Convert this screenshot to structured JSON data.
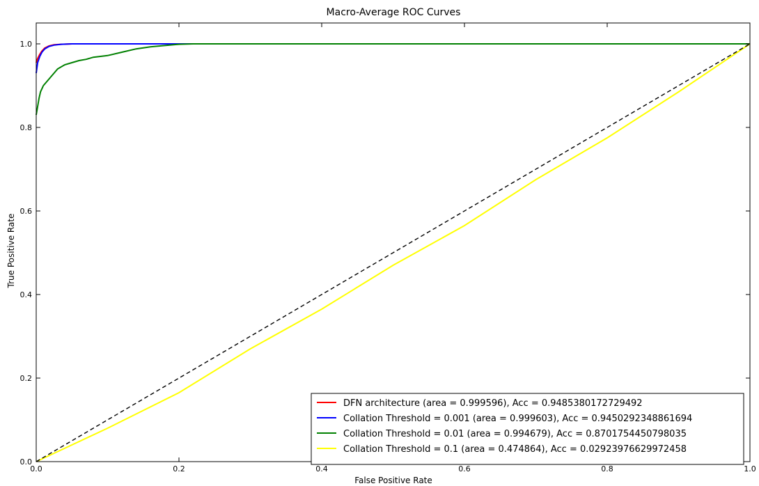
{
  "chart_data": {
    "type": "line",
    "title": "Macro-Average ROC Curves",
    "xlabel": "False Positive Rate",
    "ylabel": "True Positive Rate",
    "xlim": [
      0.0,
      1.0
    ],
    "ylim": [
      0.0,
      1.05
    ],
    "x_ticks": [
      "0.0",
      "0.2",
      "0.4",
      "0.6",
      "0.8",
      "1.0"
    ],
    "y_ticks": [
      "0.0",
      "0.2",
      "0.4",
      "0.6",
      "0.8",
      "1.0"
    ],
    "grid": false,
    "legend_position": "lower right",
    "series": [
      {
        "name": "DFN architecture (area =  0.999596), Acc = 0.9485380172729492",
        "color": "#ff0000",
        "points": [
          [
            0,
            0.955
          ],
          [
            0.002,
            0.965
          ],
          [
            0.005,
            0.975
          ],
          [
            0.008,
            0.983
          ],
          [
            0.012,
            0.99
          ],
          [
            0.018,
            0.995
          ],
          [
            0.025,
            0.998
          ],
          [
            0.035,
            0.999
          ],
          [
            0.05,
            1.0
          ],
          [
            0.2,
            1.0
          ],
          [
            1.0,
            1.0
          ]
        ]
      },
      {
        "name": "Collation Threshold = 0.001 (area =  0.999603), Acc = 0.9450292348861694",
        "color": "#0000ff",
        "points": [
          [
            0,
            0.93
          ],
          [
            0.002,
            0.955
          ],
          [
            0.005,
            0.97
          ],
          [
            0.008,
            0.98
          ],
          [
            0.012,
            0.988
          ],
          [
            0.018,
            0.994
          ],
          [
            0.025,
            0.997
          ],
          [
            0.035,
            0.999
          ],
          [
            0.05,
            1.0
          ],
          [
            0.2,
            1.0
          ],
          [
            1.0,
            1.0
          ]
        ]
      },
      {
        "name": "Collation Threshold = 0.01  (area =  0.994679), Acc = 0.8701754450798035",
        "color": "#008000",
        "points": [
          [
            0,
            0.83
          ],
          [
            0.002,
            0.85
          ],
          [
            0.004,
            0.87
          ],
          [
            0.006,
            0.885
          ],
          [
            0.01,
            0.9
          ],
          [
            0.015,
            0.91
          ],
          [
            0.02,
            0.92
          ],
          [
            0.025,
            0.93
          ],
          [
            0.03,
            0.94
          ],
          [
            0.04,
            0.95
          ],
          [
            0.05,
            0.955
          ],
          [
            0.06,
            0.96
          ],
          [
            0.07,
            0.963
          ],
          [
            0.08,
            0.968
          ],
          [
            0.1,
            0.972
          ],
          [
            0.12,
            0.98
          ],
          [
            0.14,
            0.988
          ],
          [
            0.16,
            0.993
          ],
          [
            0.18,
            0.996
          ],
          [
            0.2,
            0.999
          ],
          [
            0.22,
            1.0
          ],
          [
            1.0,
            1.0
          ]
        ]
      },
      {
        "name": "Collation Threshold = 0.1  (area =  0.474864), Acc = 0.02923976629972458",
        "color": "#ffff00",
        "points": [
          [
            0,
            0.0
          ],
          [
            0.1,
            0.08
          ],
          [
            0.2,
            0.165
          ],
          [
            0.3,
            0.27
          ],
          [
            0.4,
            0.365
          ],
          [
            0.5,
            0.47
          ],
          [
            0.6,
            0.565
          ],
          [
            0.7,
            0.675
          ],
          [
            0.8,
            0.775
          ],
          [
            0.9,
            0.885
          ],
          [
            1.0,
            1.0
          ]
        ]
      },
      {
        "name": "",
        "color": "#000000",
        "dashed": true,
        "points": [
          [
            0,
            0
          ],
          [
            1,
            1
          ]
        ]
      }
    ]
  }
}
